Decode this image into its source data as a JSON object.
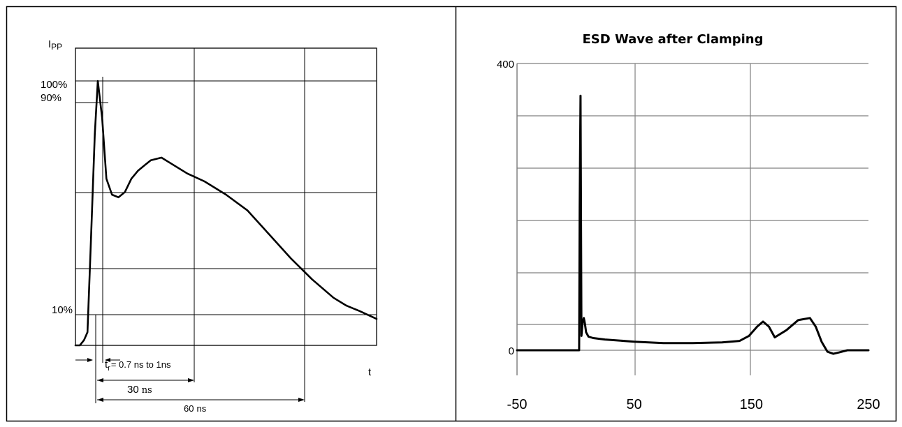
{
  "chart_data": [
    {
      "type": "line",
      "title": "",
      "ylabel": "IPP",
      "ylabel_main": "I",
      "ylabel_sub": "PP",
      "xlabel": "t",
      "yticks": [
        {
          "label": "100%",
          "value": 100
        },
        {
          "label": "90%",
          "value": 90
        },
        {
          "label": "10%",
          "value": 10
        }
      ],
      "xlim": [
        0,
        70
      ],
      "ylim": [
        0,
        120
      ],
      "grid": true,
      "series": [
        {
          "x": [
            0,
            1,
            2,
            2.8,
            3.6,
            4.5,
            5.2,
            6.2,
            7.2,
            8.5,
            10,
            11.5,
            13,
            14.5,
            16,
            17.5,
            20,
            23,
            26,
            30,
            35,
            40,
            45,
            50,
            55,
            60,
            63,
            66,
            70
          ],
          "y": [
            0,
            0,
            2,
            5,
            40,
            80,
            100,
            86,
            63,
            57,
            56,
            58,
            63,
            66,
            68,
            70,
            71,
            68,
            65,
            62,
            57,
            51,
            42,
            33,
            25,
            18,
            15,
            13,
            10
          ]
        }
      ],
      "annotations": {
        "rise_time": {
          "prefix": "t",
          "sub": "r",
          "text": "= 0.7 ns to 1ns"
        },
        "dim_30": {
          "number": "30",
          "unit": "ns"
        },
        "dim_60": {
          "number": "60",
          "unit": "ns"
        }
      }
    },
    {
      "type": "line",
      "title": "ESD Wave after Clamping",
      "xlabel": "",
      "ylabel": "",
      "xticks": [
        "-50",
        "50",
        "150",
        "250"
      ],
      "xtick_values": [
        -50,
        50,
        150,
        250
      ],
      "yticks": [
        "0",
        "400"
      ],
      "ytick_values": [
        0,
        400
      ],
      "xlim": [
        -50,
        250
      ],
      "ylim": [
        -50,
        400
      ],
      "grid": true,
      "series": [
        {
          "x": [
            -50,
            0,
            3,
            3.5,
            4.2,
            5,
            6,
            7,
            8,
            9,
            11,
            15,
            25,
            50,
            75,
            100,
            125,
            140,
            148,
            155,
            160,
            165,
            170,
            180,
            190,
            200,
            205,
            210,
            215,
            220,
            225,
            232,
            240,
            250
          ],
          "y": [
            0,
            0,
            0,
            200,
            355,
            20,
            40,
            45,
            37,
            25,
            19,
            17,
            15,
            12,
            10,
            10,
            11,
            13,
            20,
            33,
            40,
            33,
            18,
            28,
            42,
            45,
            33,
            12,
            -2,
            -5,
            -3,
            0,
            0,
            0
          ]
        }
      ]
    }
  ]
}
